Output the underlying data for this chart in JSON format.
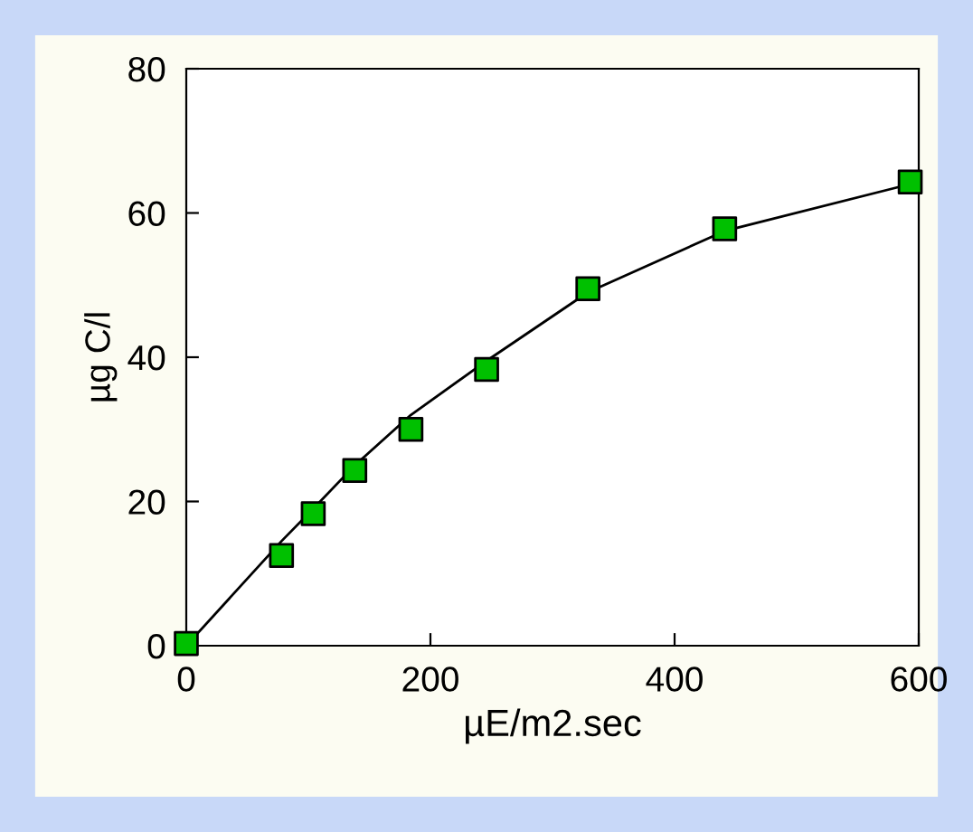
{
  "chart_data": {
    "type": "scatter",
    "xlabel": "µE/m2.sec",
    "ylabel": "µg C/l",
    "xlim": [
      0,
      600
    ],
    "ylim": [
      0,
      80
    ],
    "xticks": [
      0,
      200,
      400,
      600
    ],
    "yticks": [
      0,
      20,
      40,
      60,
      80
    ],
    "grid": false,
    "marker": "square",
    "x": [
      0,
      78,
      104,
      138,
      184,
      246,
      329,
      441,
      593
    ],
    "series": [
      {
        "color": "#00c000",
        "values": [
          0.3,
          12.5,
          18.3,
          24.3,
          30,
          38.3,
          49.5,
          57.8,
          64.3
        ]
      },
      {
        "type": "line",
        "color": "#000000",
        "marker": "none",
        "line_style": "solid",
        "x": [
          0,
          78,
          104,
          138,
          184,
          246,
          329,
          441,
          593
        ],
        "values": [
          0,
          14.5,
          19,
          25,
          32,
          39.5,
          49,
          57.5,
          64
        ]
      }
    ]
  }
}
